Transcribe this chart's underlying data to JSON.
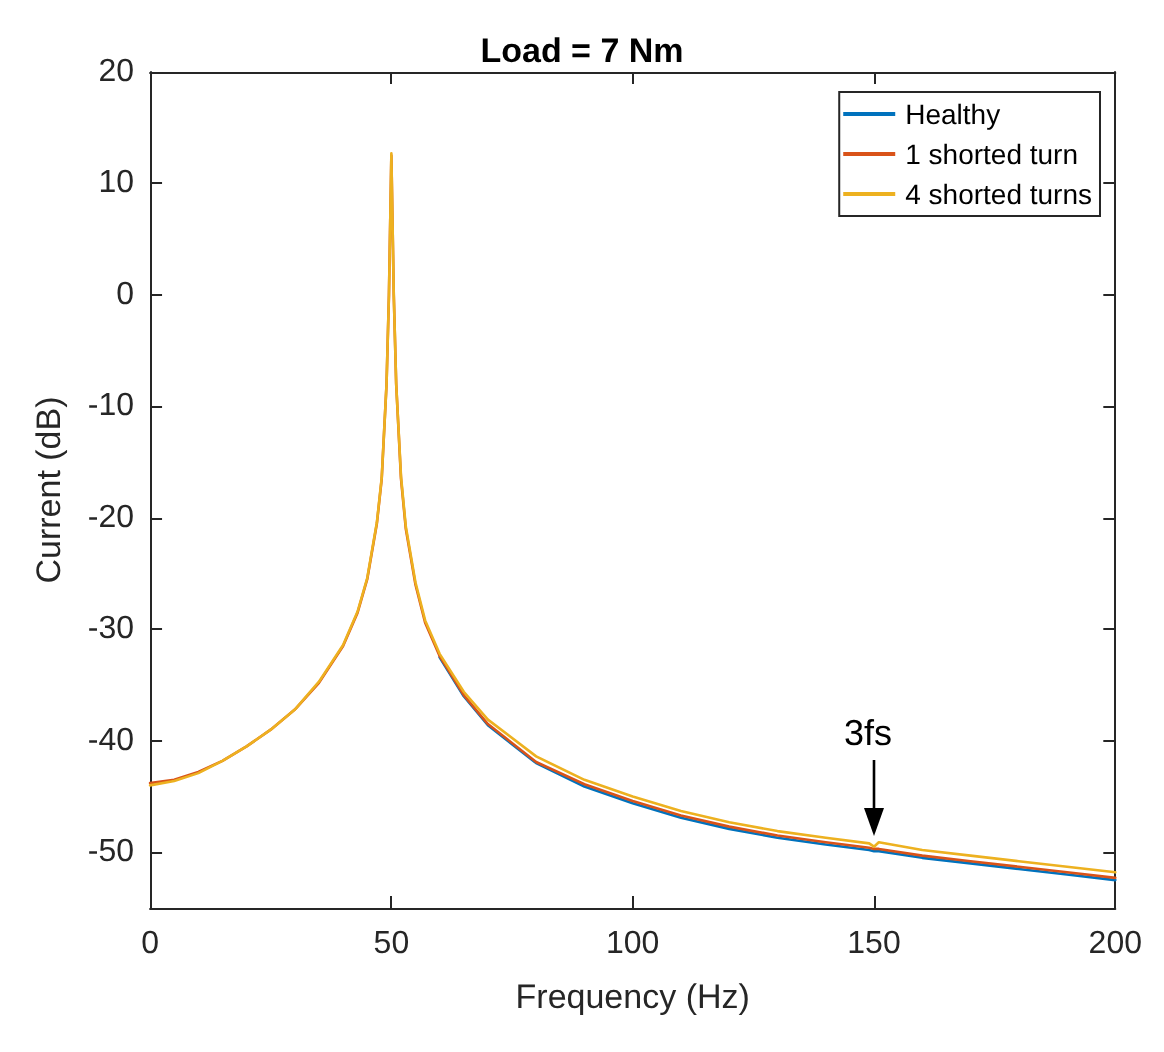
{
  "chart_data": {
    "type": "line",
    "title": "Load = 7 Nm",
    "xlabel": "Frequency (Hz)",
    "ylabel": "Current (dB)",
    "x": [
      0,
      5,
      10,
      15,
      20,
      25,
      30,
      35,
      40,
      43,
      45,
      47,
      48,
      49,
      49.5,
      50,
      50.5,
      51,
      52,
      53,
      55,
      57,
      60,
      65,
      70,
      80,
      90,
      100,
      110,
      120,
      130,
      140,
      149,
      150,
      151,
      160,
      170,
      180,
      190,
      200
    ],
    "series": [
      {
        "name": "Healthy",
        "color": "#0072bd",
        "values": [
          null,
          null,
          null,
          null,
          null,
          null,
          null,
          null,
          null,
          null,
          null,
          null,
          null,
          null,
          null,
          null,
          null,
          null,
          null,
          null,
          null,
          null,
          -32.5,
          -36,
          -38.6,
          -42,
          -44.1,
          -45.6,
          -46.9,
          -47.9,
          -48.7,
          -49.3,
          -49.8,
          -49.9,
          -49.9,
          -50.5,
          -51,
          -51.5,
          -52,
          -52.5
        ]
      },
      {
        "name": "1 shorted turn",
        "color": "#d95319",
        "values": [
          -43.8,
          -43.5,
          -42.8,
          -41.8,
          -40.5,
          -39,
          -37.2,
          -34.8,
          -31.5,
          -28.5,
          -25.5,
          -20.5,
          -16.5,
          -8,
          0,
          12.5,
          0,
          -8,
          -16.5,
          -21,
          -26,
          -29.4,
          -32.4,
          -35.9,
          -38.5,
          -41.9,
          -43.9,
          -45.4,
          -46.7,
          -47.7,
          -48.5,
          -49.1,
          -49.6,
          -49.7,
          -49.7,
          -50.3,
          -50.8,
          -51.3,
          -51.8,
          -52.3
        ]
      },
      {
        "name": "4 shorted turns",
        "color": "#edb120",
        "values": [
          -44,
          -43.6,
          -42.9,
          -41.8,
          -40.5,
          -39,
          -37.2,
          -34.7,
          -31.4,
          -28.4,
          -25.4,
          -20.4,
          -16.4,
          -8,
          0,
          12.7,
          0,
          -8,
          -16.3,
          -20.8,
          -25.8,
          -29.2,
          -32.2,
          -35.6,
          -38.1,
          -41.4,
          -43.5,
          -45,
          -46.3,
          -47.3,
          -48.1,
          -48.7,
          -49.2,
          -49.5,
          -49.1,
          -49.8,
          -50.3,
          -50.8,
          -51.3,
          -51.8
        ]
      }
    ],
    "xlim": [
      0,
      200
    ],
    "xticks": [
      0,
      50,
      100,
      150,
      200
    ],
    "ylim": [
      -55,
      20
    ],
    "yticks": [
      -50,
      -40,
      -30,
      -20,
      -10,
      0,
      10,
      20
    ],
    "grid": false,
    "legend": "top right",
    "marker": "none",
    "line_style": "solid",
    "annotations": [
      {
        "text": "3fs",
        "x": 150,
        "y": -49.2
      }
    ]
  }
}
